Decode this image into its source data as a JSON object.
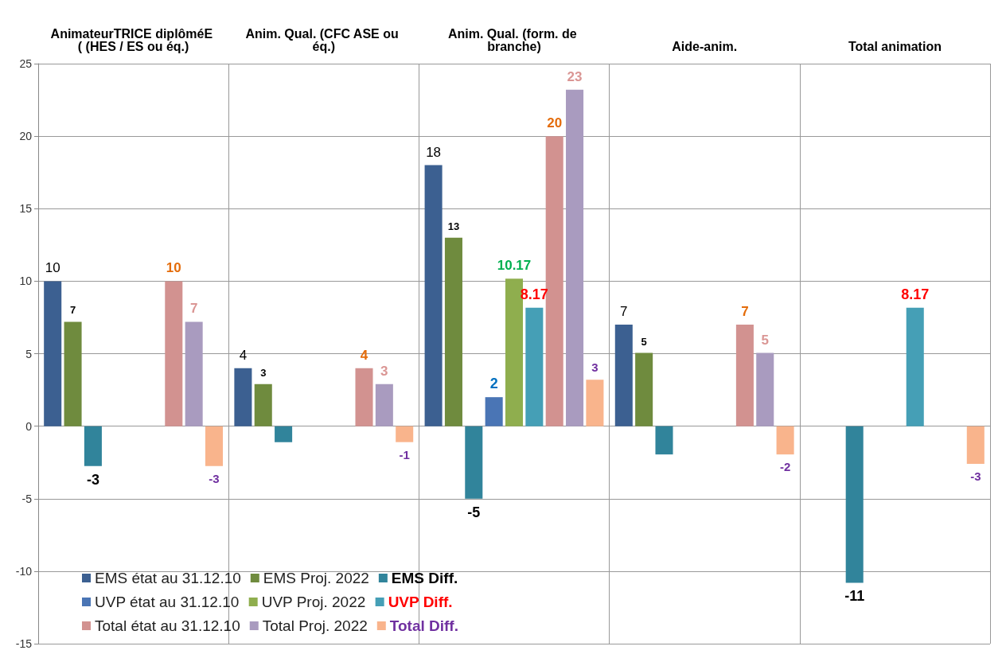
{
  "chart_data": {
    "type": "bar",
    "categories": [
      "AnimateurTRICE diplôméE ( (HES / ES ou éq.)",
      "Anim. Qual. (CFC ASE ou éq.)",
      "Anim. Qual. (form. de branche)",
      "Aide-anim.",
      "Total animation"
    ],
    "series": [
      {
        "name": "EMS état au 31.12.10",
        "color": "#3c6091",
        "values": [
          10,
          4,
          18,
          7,
          null
        ],
        "value_labels": [
          "10",
          "4",
          "18",
          "7",
          null
        ]
      },
      {
        "name": "EMS Proj. 2022",
        "color": "#6f8b3e",
        "values": [
          7.2,
          2.9,
          13,
          5.05,
          null
        ],
        "value_labels": [
          "7",
          "3",
          "13",
          "5",
          null
        ]
      },
      {
        "name": "EMS Diff.",
        "color": "#31849b",
        "values": [
          -2.75,
          -1.1,
          -5,
          -1.95,
          -10.8
        ],
        "value_labels": [
          "-3",
          null,
          "-5",
          null,
          "-11"
        ]
      },
      {
        "name": "UVP état au 31.12.10",
        "color": "#4a75b5",
        "values": [
          null,
          null,
          2,
          null,
          null
        ],
        "value_labels": [
          null,
          null,
          "2",
          null,
          null
        ]
      },
      {
        "name": "UVP Proj. 2022",
        "color": "#8fae4e",
        "values": [
          null,
          null,
          10.17,
          null,
          null
        ],
        "value_labels": [
          null,
          null,
          "10.17",
          null,
          null
        ]
      },
      {
        "name": "UVP Diff.",
        "color": "#459fb6",
        "values": [
          null,
          null,
          8.17,
          null,
          8.17
        ],
        "value_labels": [
          null,
          null,
          "8.17",
          null,
          "8.17"
        ]
      },
      {
        "name": "Total état au 31.12.10",
        "color": "#d29290",
        "values": [
          10,
          4,
          20,
          7,
          null
        ],
        "value_labels": [
          "10",
          "4",
          "20",
          "7",
          null
        ]
      },
      {
        "name": "Total Proj. 2022",
        "color": "#a99bbf",
        "values": [
          7.2,
          2.9,
          23.2,
          5.05,
          null
        ],
        "value_labels": [
          "7",
          "3",
          "23",
          "5",
          null
        ]
      },
      {
        "name": "Total Diff.",
        "color": "#f9b48c",
        "values": [
          -2.75,
          -1.1,
          3.2,
          -1.95,
          -2.6
        ],
        "value_labels": [
          "-3",
          "-1",
          "3",
          "-2",
          "-3"
        ]
      }
    ],
    "ylim": [
      -15,
      25
    ],
    "yticks": [
      -15,
      -10,
      -5,
      0,
      5,
      10,
      15,
      20,
      25
    ],
    "grid": true,
    "legend": "bottom left"
  }
}
